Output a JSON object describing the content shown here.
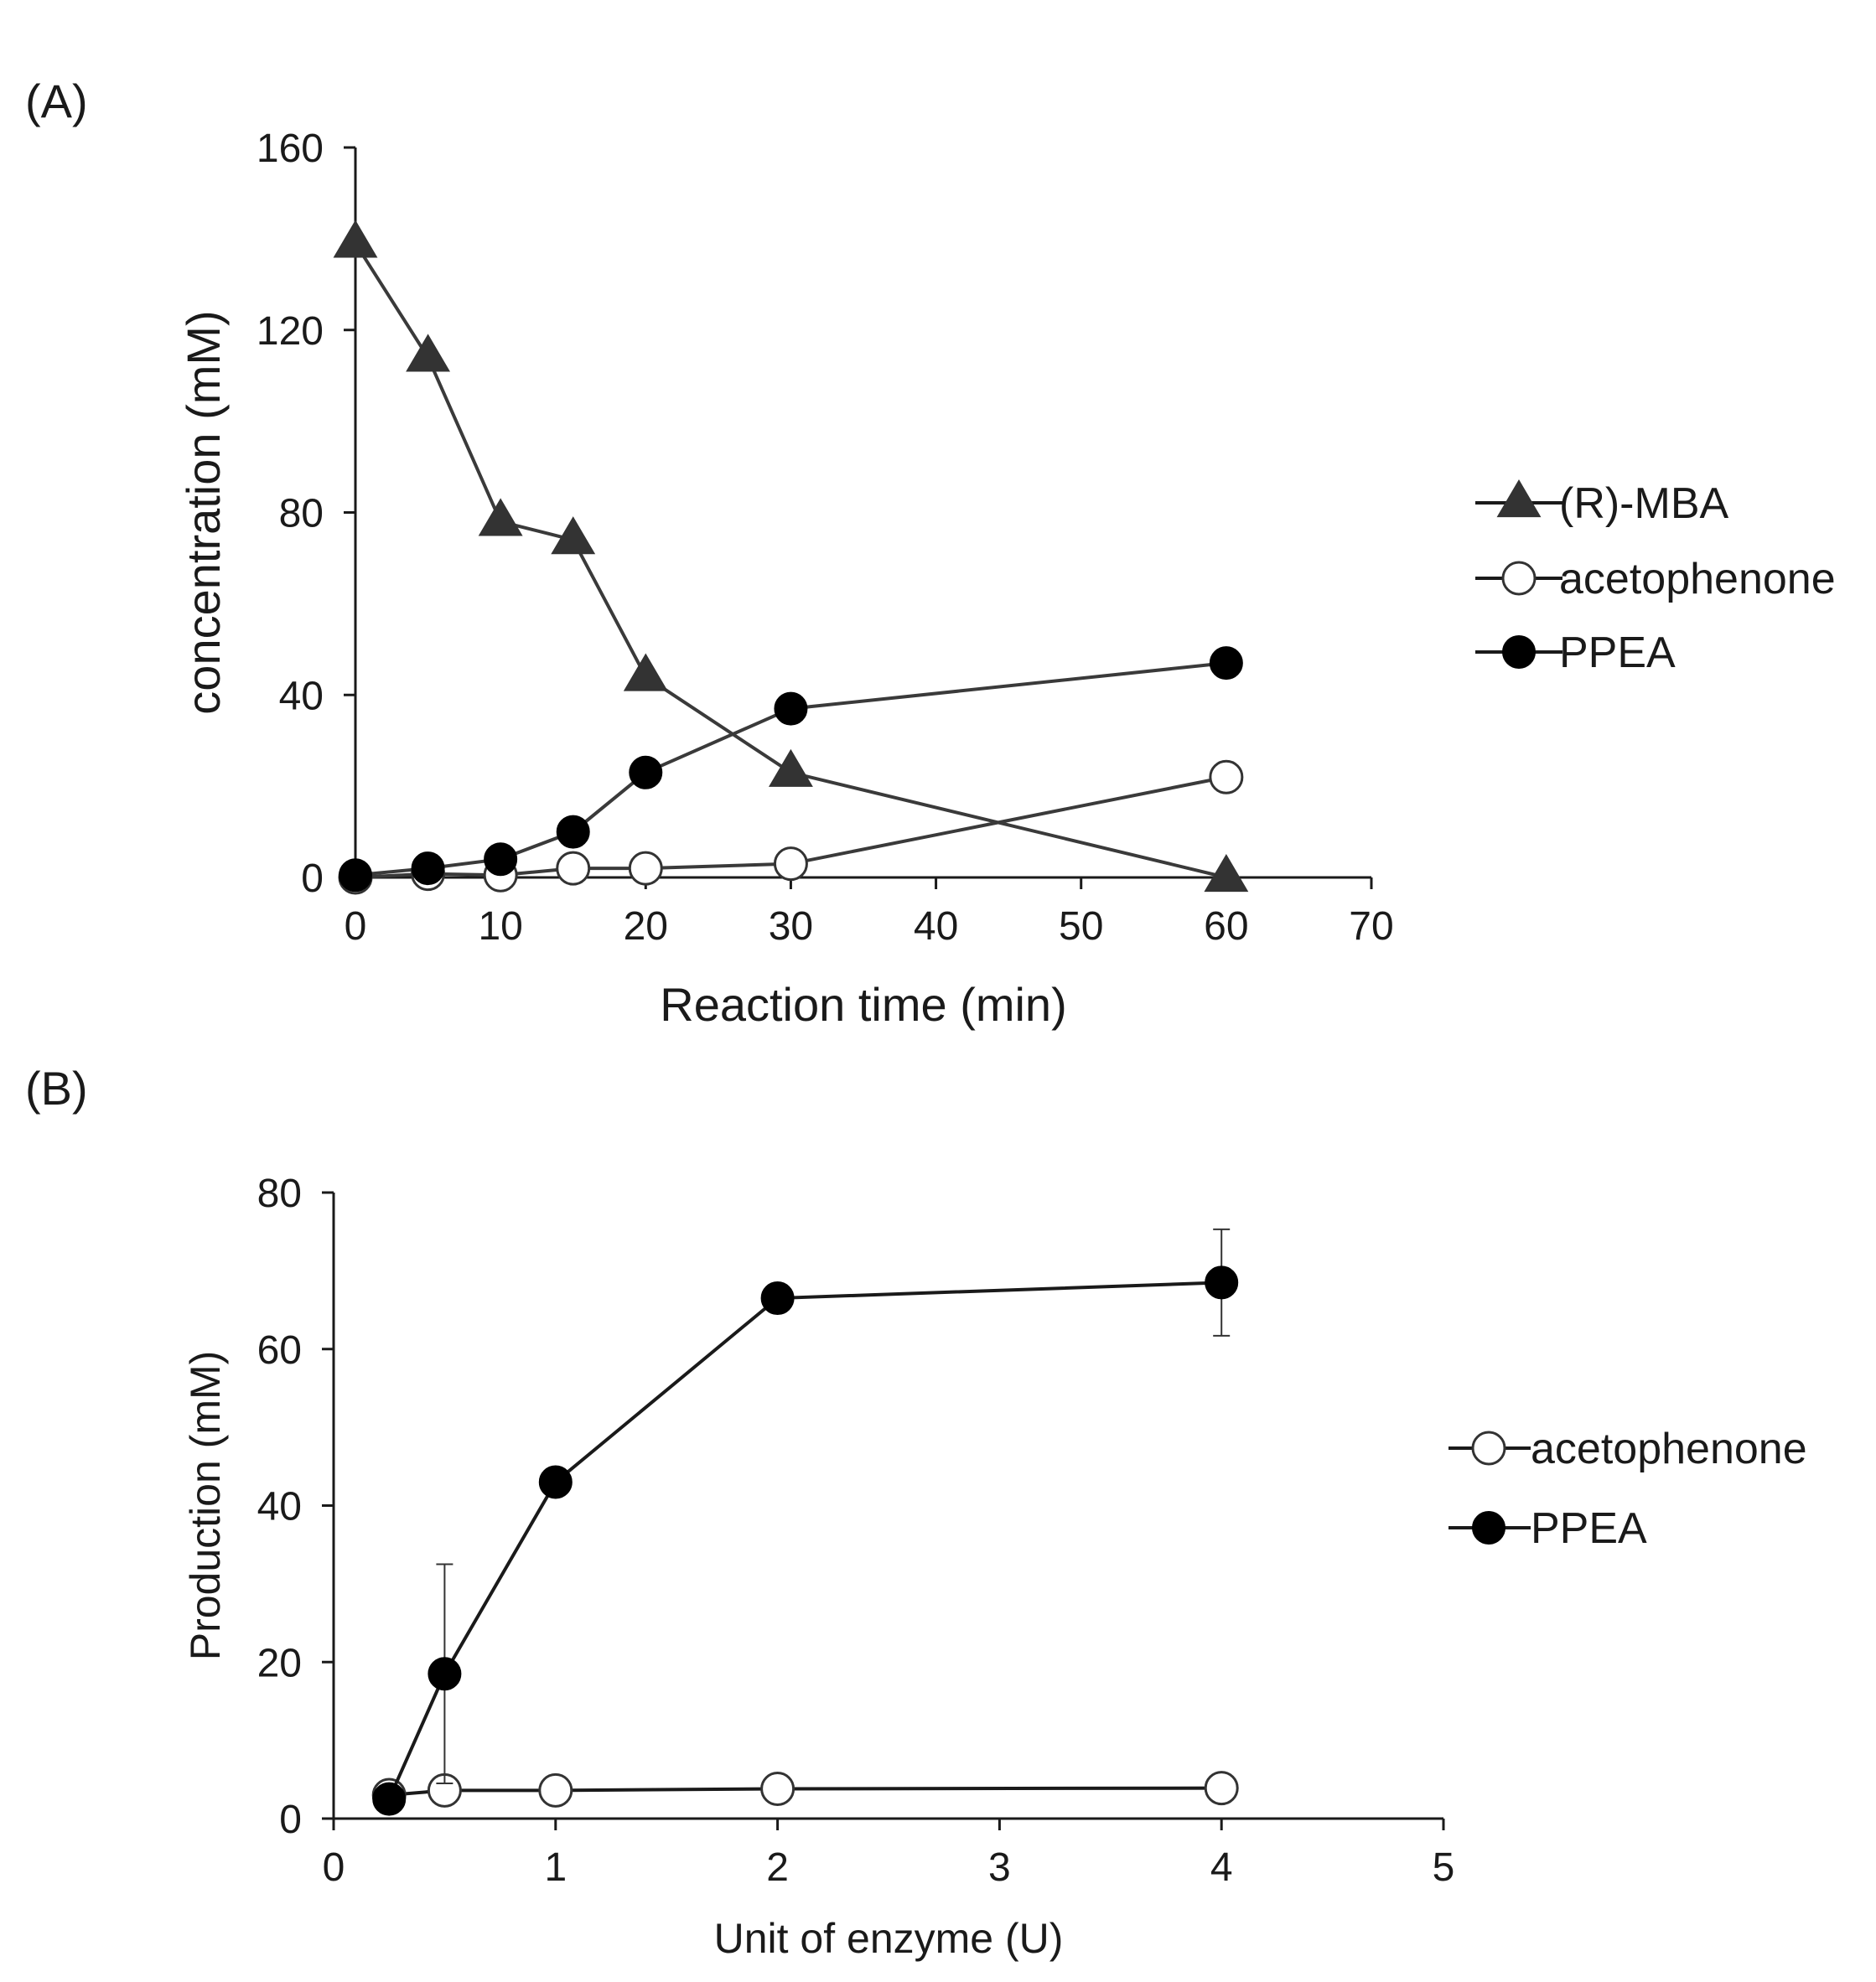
{
  "chart_data": [
    {
      "type": "line",
      "panel_label": "(A)",
      "title": "",
      "xlabel": "Reaction time (min)",
      "ylabel": "concentration (mM)",
      "xlim": [
        0,
        70
      ],
      "ylim": [
        0,
        160
      ],
      "xticks": [
        0,
        10,
        20,
        30,
        40,
        50,
        60,
        70
      ],
      "yticks": [
        0,
        40,
        80,
        120,
        160
      ],
      "grid": false,
      "legend_position": "right",
      "series": [
        {
          "name": "(R)-MBA",
          "marker": "filled-triangle",
          "x": [
            0,
            5,
            10,
            15,
            20,
            30,
            60
          ],
          "values": [
            139,
            114,
            78,
            74,
            44,
            23,
            0
          ]
        },
        {
          "name": "acetophenone",
          "marker": "open-circle",
          "x": [
            0,
            5,
            10,
            15,
            20,
            30,
            60
          ],
          "values": [
            0,
            0.8,
            0.5,
            2,
            2,
            3,
            22
          ]
        },
        {
          "name": "PPEA",
          "marker": "filled-circle",
          "x": [
            0,
            5,
            10,
            15,
            20,
            30,
            60
          ],
          "values": [
            0.5,
            2,
            4,
            10,
            23,
            37,
            47
          ]
        }
      ]
    },
    {
      "type": "line",
      "panel_label": "(B)",
      "title": "",
      "xlabel": "Unit of enzyme (U)",
      "ylabel": "Production (mM)",
      "xlim": [
        0,
        5
      ],
      "ylim": [
        0,
        80
      ],
      "xticks": [
        0,
        1,
        2,
        3,
        4,
        5
      ],
      "yticks": [
        0,
        20,
        40,
        60,
        80
      ],
      "grid": false,
      "legend_position": "right",
      "series": [
        {
          "name": "acetophenone",
          "marker": "open-circle",
          "x": [
            0.25,
            0.5,
            1,
            2,
            4
          ],
          "values": [
            3,
            3.6,
            3.6,
            3.8,
            3.9
          ]
        },
        {
          "name": "PPEA",
          "marker": "filled-circle",
          "x": [
            0.25,
            0.5,
            1,
            2,
            4
          ],
          "values": [
            2.5,
            18.5,
            43,
            66.5,
            68.5
          ],
          "error": [
            0,
            14,
            0,
            0,
            6.8
          ]
        }
      ]
    }
  ]
}
